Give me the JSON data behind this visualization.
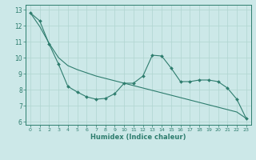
{
  "xlabel": "Humidex (Indice chaleur)",
  "ylabel": "",
  "bg_color": "#cce8e8",
  "line_color": "#2e7d6e",
  "grid_color": "#b0d4d0",
  "x_values": [
    0,
    1,
    2,
    3,
    4,
    5,
    6,
    7,
    8,
    9,
    10,
    11,
    12,
    13,
    14,
    15,
    16,
    17,
    18,
    19,
    20,
    21,
    22,
    23
  ],
  "series1": [
    12.8,
    12.3,
    10.85,
    9.6,
    8.2,
    7.85,
    7.55,
    7.4,
    7.45,
    7.75,
    8.4,
    8.4,
    8.85,
    10.15,
    10.1,
    9.35,
    8.5,
    8.5,
    8.6,
    8.6,
    8.5,
    8.1,
    7.4,
    6.2
  ],
  "series2": [
    12.8,
    11.95,
    10.9,
    10.0,
    9.5,
    9.25,
    9.05,
    8.85,
    8.7,
    8.55,
    8.4,
    8.25,
    8.1,
    7.95,
    7.8,
    7.65,
    7.5,
    7.35,
    7.2,
    7.05,
    6.9,
    6.75,
    6.6,
    6.2
  ],
  "ylim": [
    5.8,
    13.3
  ],
  "xlim": [
    -0.5,
    23.5
  ],
  "yticks": [
    6,
    7,
    8,
    9,
    10,
    11,
    12,
    13
  ],
  "xticks": [
    0,
    1,
    2,
    3,
    4,
    5,
    6,
    7,
    8,
    9,
    10,
    11,
    12,
    13,
    14,
    15,
    16,
    17,
    18,
    19,
    20,
    21,
    22,
    23
  ]
}
